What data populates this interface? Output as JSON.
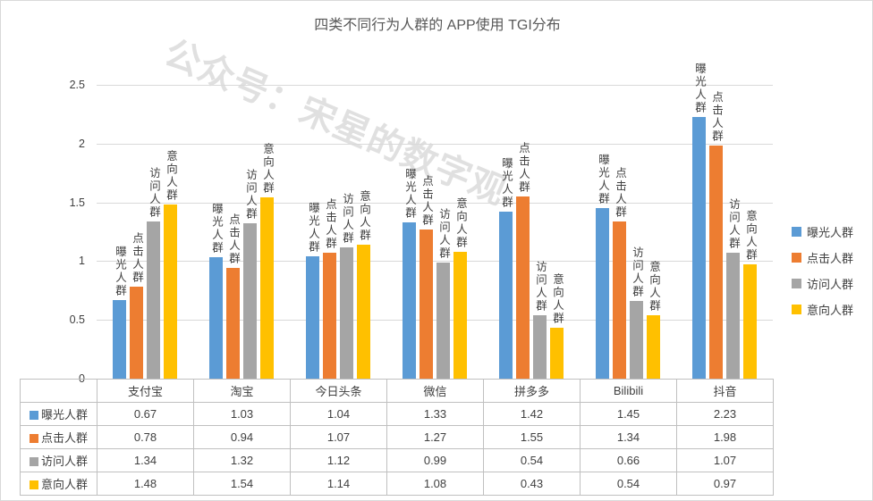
{
  "watermark": {
    "text": "公众号：宋星的数字观"
  },
  "chart_data": {
    "type": "bar",
    "title": "四类不同行为人群的 APP使用 TGI分布",
    "categories": [
      "支付宝",
      "淘宝",
      "今日头条",
      "微信",
      "拼多多",
      "Bilibili",
      "抖音"
    ],
    "series": [
      {
        "name": "曝光人群",
        "color": "#5B9BD5",
        "values": [
          0.67,
          1.03,
          1.04,
          1.33,
          1.42,
          1.45,
          2.23
        ]
      },
      {
        "name": "点击人群",
        "color": "#ED7D31",
        "values": [
          0.78,
          0.94,
          1.07,
          1.27,
          1.55,
          1.34,
          1.98
        ]
      },
      {
        "name": "访问人群",
        "color": "#A5A5A5",
        "values": [
          1.34,
          1.32,
          1.12,
          0.99,
          0.54,
          0.66,
          1.07
        ]
      },
      {
        "name": "意向人群",
        "color": "#FFC000",
        "values": [
          1.48,
          1.54,
          1.14,
          1.08,
          0.43,
          0.54,
          0.97
        ]
      }
    ],
    "xlabel": "",
    "ylabel": "",
    "ylim": [
      0,
      2.5
    ],
    "ytick_labels": [
      "0",
      "0.5",
      "1",
      "1.5",
      "2",
      "2.5"
    ],
    "ytick_values": [
      0,
      0.5,
      1,
      1.5,
      2,
      2.5
    ],
    "grid": true,
    "legend_position": "right",
    "bar_top_labels": "series name, vertical text above each bar",
    "data_table_shown": true
  }
}
